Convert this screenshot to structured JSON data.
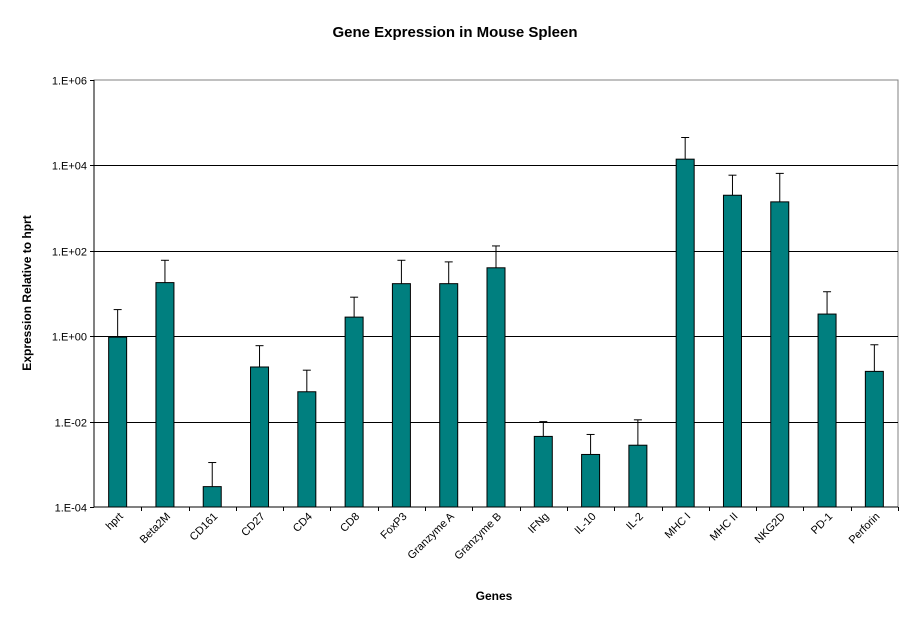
{
  "chart_data": {
    "type": "bar",
    "title": "Gene Expression in Mouse Spleen",
    "xlabel": "Genes",
    "ylabel": "Expression Relative to hprt",
    "yscale": "log",
    "ylim": [
      0.0001,
      1000000
    ],
    "yticks": [
      0.0001,
      0.01,
      1,
      100,
      10000,
      1000000
    ],
    "ytick_labels": [
      "1.E-04",
      "1.E-02",
      "1.E+00",
      "1.E+02",
      "1.E+04",
      "1.E+06"
    ],
    "grid": "horizontal major gridlines",
    "legend": "none",
    "bar_color": "#007f7f",
    "error_bars": "upper only",
    "categories": [
      "hprt",
      "Beta2M",
      "CD161",
      "CD27",
      "CD4",
      "CD8",
      "FoxP3",
      "Granzyme A",
      "Granzyme B",
      "IFNg",
      "IL-10",
      "IL-2",
      "MHC I",
      "MHC II",
      "NKG2D",
      "PD-1",
      "Perforin"
    ],
    "values": [
      0.95,
      18,
      0.0003,
      0.19,
      0.05,
      2.8,
      17,
      17,
      40,
      0.0045,
      0.0017,
      0.0028,
      14000,
      2000,
      1400,
      3.3,
      0.15
    ],
    "error_upper": [
      4.2,
      60,
      0.0011,
      0.6,
      0.16,
      8.2,
      60,
      55,
      130,
      0.01,
      0.005,
      0.011,
      45000,
      5900,
      6500,
      11,
      0.63
    ]
  }
}
